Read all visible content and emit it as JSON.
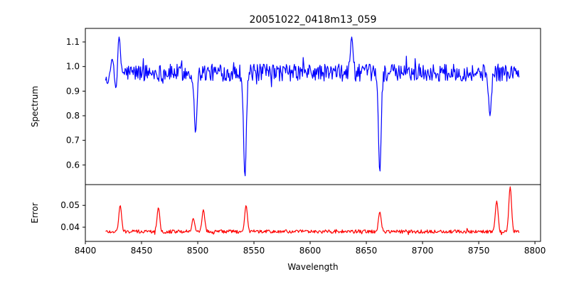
{
  "chart_data": [
    {
      "type": "line",
      "panel": "top",
      "title": "20051022_0418m13_059",
      "xlabel": "",
      "ylabel": "Spectrum",
      "xlim": [
        8400,
        8805
      ],
      "ylim": [
        0.52,
        1.155
      ],
      "yticks": [
        0.6,
        0.7,
        0.8,
        0.9,
        1.0,
        1.1
      ],
      "ytick_labels": [
        "0.6",
        "0.7",
        "0.8",
        "0.9",
        "1.0",
        "1.1"
      ],
      "x_range": [
        8418,
        8786
      ],
      "grid": false,
      "series": [
        {
          "color": "#0000ff",
          "base": 0.975,
          "noise": 0.035,
          "features": [
            {
              "x": 8420,
              "y": 0.93
            },
            {
              "x": 8424,
              "y": 1.03
            },
            {
              "x": 8428,
              "y": 0.88
            },
            {
              "x": 8430,
              "y": 1.12
            },
            {
              "x": 8498,
              "y": 0.73
            },
            {
              "x": 8542,
              "y": 0.55
            },
            {
              "x": 8637,
              "y": 1.12
            },
            {
              "x": 8662,
              "y": 0.57
            },
            {
              "x": 8760,
              "y": 0.8
            }
          ]
        }
      ]
    },
    {
      "type": "line",
      "panel": "bottom",
      "xlabel": "Wavelength",
      "ylabel": "Error",
      "xlim": [
        8400,
        8805
      ],
      "ylim": [
        0.0335,
        0.0595
      ],
      "xticks": [
        8400,
        8450,
        8500,
        8550,
        8600,
        8650,
        8700,
        8750,
        8800
      ],
      "xtick_labels": [
        "8400",
        "8450",
        "8500",
        "8550",
        "8600",
        "8650",
        "8700",
        "8750",
        "8800"
      ],
      "yticks": [
        0.04,
        0.05
      ],
      "ytick_labels": [
        "0.04",
        "0.05"
      ],
      "x_range": [
        8418,
        8786
      ],
      "grid": false,
      "series": [
        {
          "color": "#ff0000",
          "base": 0.038,
          "noise": 0.0008,
          "features": [
            {
              "x": 8431,
              "y": 0.05
            },
            {
              "x": 8465,
              "y": 0.049
            },
            {
              "x": 8496,
              "y": 0.044
            },
            {
              "x": 8505,
              "y": 0.048
            },
            {
              "x": 8543,
              "y": 0.05
            },
            {
              "x": 8662,
              "y": 0.047
            },
            {
              "x": 8766,
              "y": 0.052
            },
            {
              "x": 8778,
              "y": 0.0585
            }
          ]
        }
      ]
    }
  ]
}
